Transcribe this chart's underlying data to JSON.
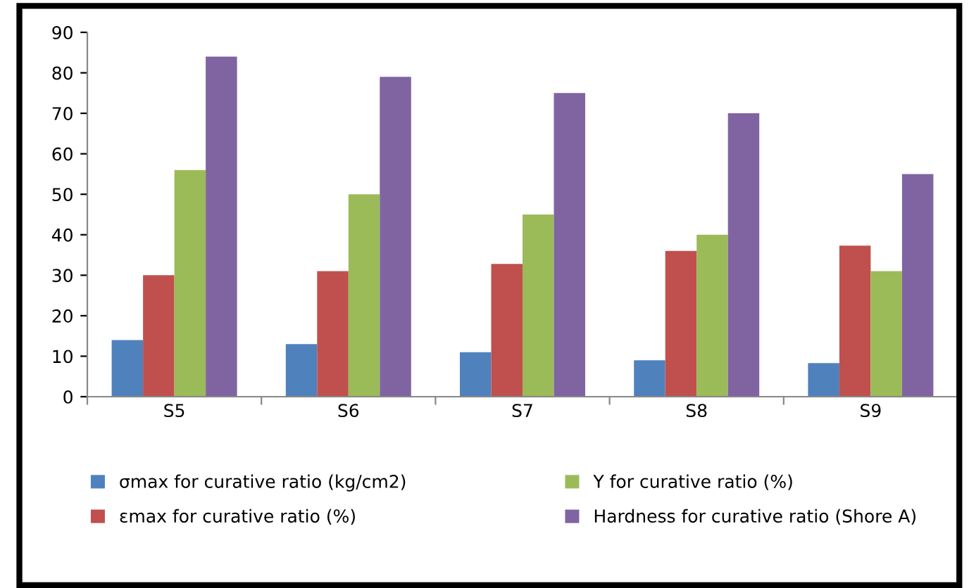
{
  "chart_data": {
    "type": "bar",
    "categories": [
      "S5",
      "S6",
      "S7",
      "S8",
      "S9"
    ],
    "series": [
      {
        "name": "σmax for curative ratio (kg/cm2)",
        "color": "#4f81bd",
        "values": [
          14,
          13,
          11,
          9,
          8.3
        ]
      },
      {
        "name": "εmax for curative ratio (%)",
        "color": "#c0504d",
        "values": [
          30,
          31,
          32.8,
          36,
          37.3
        ]
      },
      {
        "name": "Y for curative ratio (%)",
        "color": "#9bbb59",
        "values": [
          56,
          50,
          45,
          40,
          31
        ]
      },
      {
        "name": "Hardness for curative ratio (Shore A)",
        "color": "#8064a2",
        "values": [
          84,
          79,
          75,
          70,
          55
        ]
      }
    ],
    "ylim": [
      0,
      90
    ],
    "yticks": [
      0,
      10,
      20,
      30,
      40,
      50,
      60,
      70,
      80,
      90
    ],
    "grid": false,
    "legend": "bottom"
  }
}
